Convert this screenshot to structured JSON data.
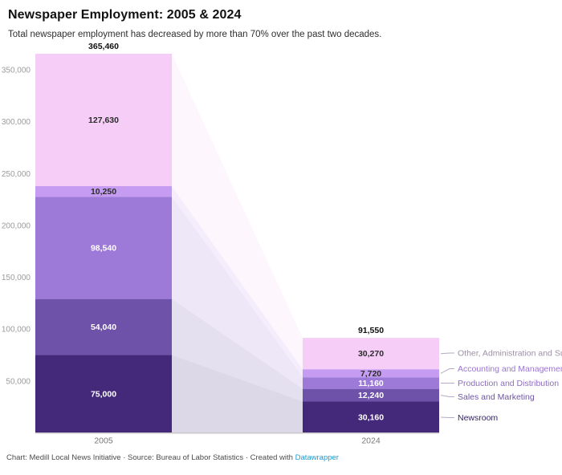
{
  "header": {
    "title": "Newspaper Employment: 2005 & 2024",
    "subtitle": "Total newspaper employment has decreased by more than 70% over the past two decades."
  },
  "chart_data": {
    "type": "bar",
    "variant": "stacked-columns-with-connecting-areas",
    "title": "Newspaper Employment: 2005 & 2024",
    "categories": [
      "2005",
      "2024"
    ],
    "series": [
      {
        "name": "Other, Administration and Support",
        "values": [
          127630,
          30270
        ],
        "value_labels": [
          "127,630",
          "30,270"
        ],
        "color": "#f5cdf6",
        "value_text_color": "#2b2b2b",
        "legend_text_color": "#9e90a6"
      },
      {
        "name": "Accounting and Management",
        "values": [
          10250,
          7720
        ],
        "value_labels": [
          "10,250",
          "7,720"
        ],
        "color": "#c59cf1",
        "value_text_color": "#2b2b2b",
        "legend_text_color": "#9a77cf"
      },
      {
        "name": "Production and Distribution",
        "values": [
          98540,
          11160
        ],
        "value_labels": [
          "98,540",
          "11,160"
        ],
        "color": "#9d7ad8",
        "value_text_color": "#ffffff",
        "legend_text_color": "#8d6cc0"
      },
      {
        "name": "Sales and Marketing",
        "values": [
          54040,
          12240
        ],
        "value_labels": [
          "54,040",
          "12,240"
        ],
        "color": "#6e51a8",
        "value_text_color": "#ffffff",
        "legend_text_color": "#6f54a3"
      },
      {
        "name": "Newsroom",
        "values": [
          75000,
          30160
        ],
        "value_labels": [
          "75,000",
          "30,160"
        ],
        "color": "#44297a",
        "value_text_color": "#ffffff",
        "legend_text_color": "#33265c"
      }
    ],
    "totals": {
      "values": [
        365460,
        91550
      ],
      "labels": [
        "365,460",
        "91,550"
      ]
    },
    "y_axis": {
      "tick_values": [
        50000,
        100000,
        150000,
        200000,
        250000,
        300000,
        350000
      ],
      "tick_labels": [
        "50,000",
        "100,000",
        "150,000",
        "200,000",
        "250,000",
        "300,000",
        "350,000"
      ],
      "tick_color": "#9b9b9b"
    },
    "x_axis": {
      "label_color": "#767676",
      "line_color": "#c9c9c9"
    },
    "ylim": [
      0,
      380000
    ],
    "grid": false,
    "legend_position": "right",
    "connector_opacity": 0.18,
    "leader_line_color": "#b6aac6"
  },
  "footer": {
    "text": "Chart: Medill Local News Initiative · Source: Bureau of Labor Statistics · Created with ",
    "link_label": "Datawrapper"
  }
}
